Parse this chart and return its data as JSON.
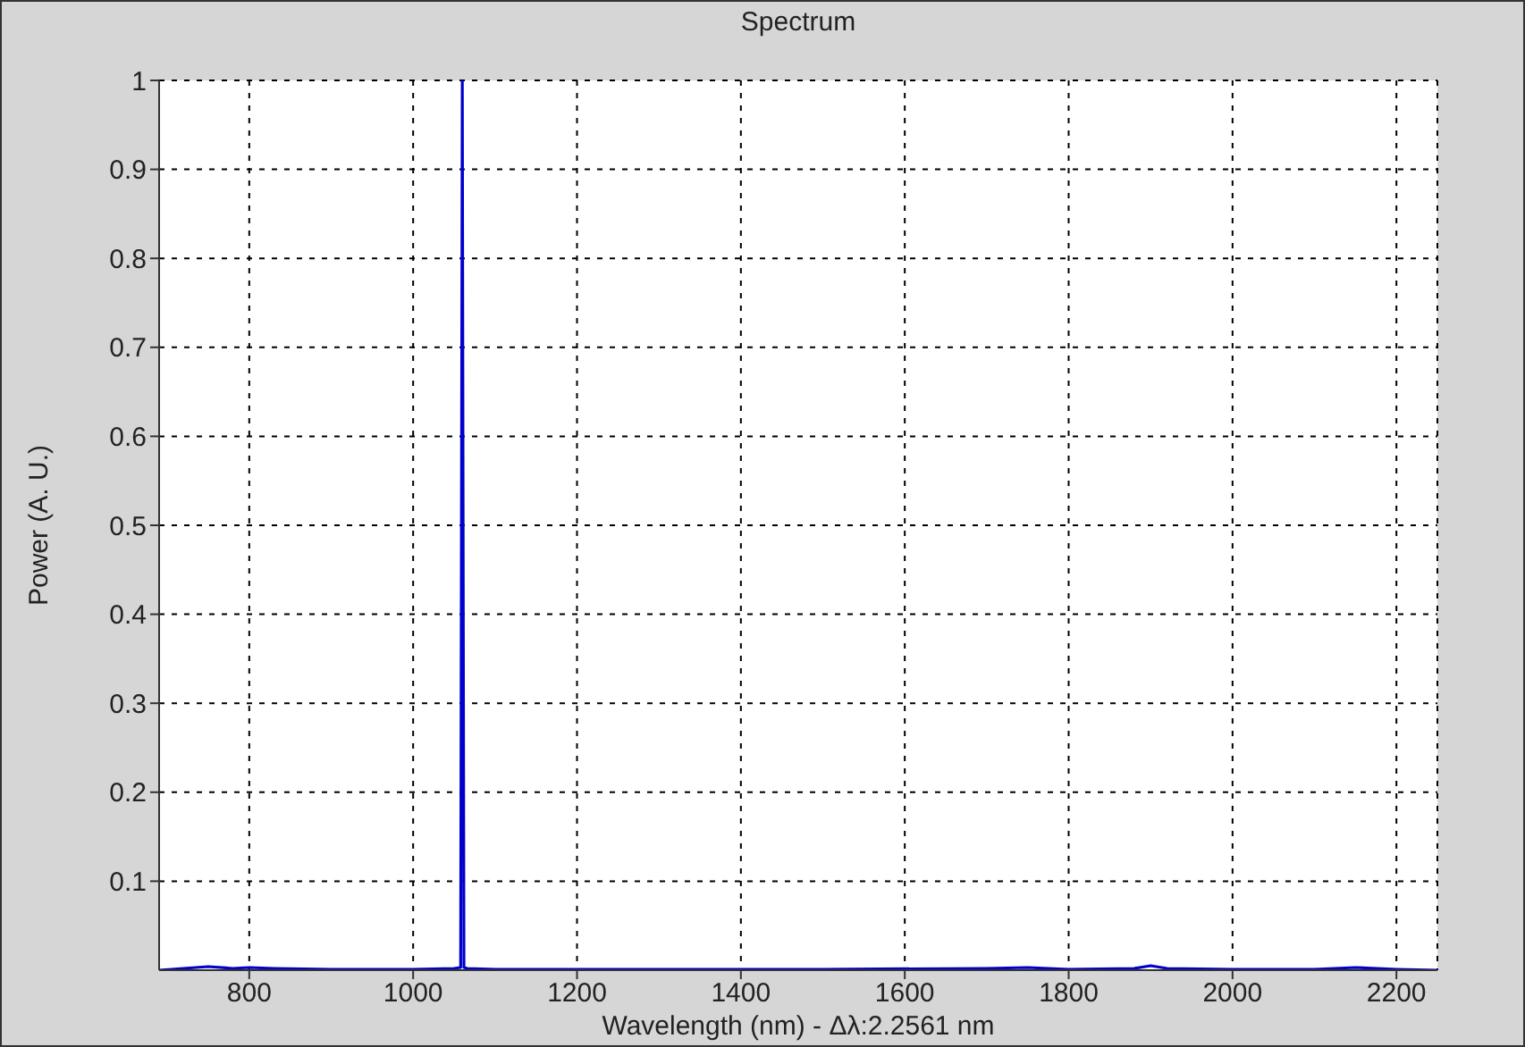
{
  "chart_data": {
    "type": "line",
    "title": "Spectrum",
    "xlabel": "Wavelength (nm) - Δλ:2.2561 nm",
    "ylabel": "Power (A. U.)",
    "x": [
      690,
      720,
      750,
      780,
      800,
      830,
      900,
      1000,
      1050,
      1058,
      1060,
      1062,
      1066,
      1100,
      1300,
      1500,
      1700,
      1750,
      1800,
      1880,
      1900,
      1920,
      2000,
      2100,
      2150,
      2200,
      2250
    ],
    "series": [
      {
        "color": "#0000cc",
        "values": [
          0,
          0.002,
          0.004,
          0.002,
          0.003,
          0.002,
          0.001,
          0.001,
          0.002,
          0.003,
          1,
          0.003,
          0.002,
          0.001,
          0.001,
          0.001,
          0.002,
          0.003,
          0.001,
          0.002,
          0.005,
          0.002,
          0.001,
          0.001,
          0.003,
          0.001,
          0
        ]
      }
    ],
    "xlim": [
      690,
      2250
    ],
    "ylim": [
      0,
      1
    ],
    "xticks": [
      800,
      1000,
      1200,
      1400,
      1600,
      1800,
      2000,
      2200
    ],
    "yticks": [
      0.1,
      0.2,
      0.3,
      0.4,
      0.5,
      0.6,
      0.7,
      0.8,
      0.9,
      1
    ],
    "grid": true,
    "line_style": "solid"
  }
}
